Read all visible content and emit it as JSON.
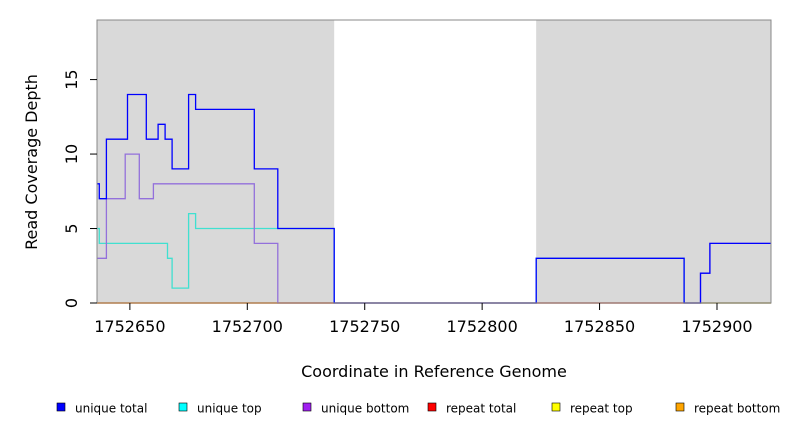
{
  "chart_data": {
    "type": "line",
    "xlabel": "Coordinate in Reference Genome",
    "ylabel": "Read Coverage Depth",
    "xlim": [
      1752636,
      1752923
    ],
    "ylim": [
      0,
      19
    ],
    "x_ticks": [
      1752650,
      1752700,
      1752750,
      1752800,
      1752850,
      1752900
    ],
    "x_tick_labels": [
      "1752650",
      "1752700",
      "1752750",
      "1752800",
      "1752850",
      "1752900"
    ],
    "y_ticks": [
      0,
      5,
      10,
      15
    ],
    "y_tick_labels": [
      "0",
      "5",
      "10",
      "15"
    ],
    "shaded_regions": [
      {
        "x0": 1752636,
        "x1": 1752737,
        "color": "#d9d9d9"
      },
      {
        "x0": 1752823,
        "x1": 1752923,
        "color": "#d9d9d9"
      }
    ],
    "legend_position": "bottom",
    "series": [
      {
        "name": "unique total",
        "color": "#0000ff",
        "legend_color": "#0000ff",
        "x": [
          1752636,
          1752637,
          1752640,
          1752648,
          1752649,
          1752657,
          1752658,
          1752662,
          1752665,
          1752668,
          1752675,
          1752676,
          1752678,
          1752703,
          1752709,
          1752713,
          1752736,
          1752737,
          1752823,
          1752886,
          1752893,
          1752897,
          1752923
        ],
        "y": [
          8,
          7,
          11,
          11,
          14,
          11,
          11,
          12,
          11,
          9,
          14,
          14,
          13,
          9,
          9,
          5,
          5,
          0,
          3,
          0,
          2,
          4,
          4
        ]
      },
      {
        "name": "unique top",
        "color": "#40e0d0",
        "legend_color": "#00ffff",
        "x": [
          1752636,
          1752637,
          1752666,
          1752668,
          1752675,
          1752676,
          1752678,
          1752713,
          1752736,
          1752737,
          1752823,
          1752886,
          1752923
        ],
        "y": [
          5,
          4,
          3,
          1,
          6,
          6,
          5,
          5,
          5,
          0,
          3,
          0,
          0
        ]
      },
      {
        "name": "unique bottom",
        "color": "#9370db",
        "legend_color": "#a020f0",
        "x": [
          1752636,
          1752640,
          1752648,
          1752654,
          1752658,
          1752660,
          1752703,
          1752712,
          1752713,
          1752893,
          1752897,
          1752923
        ],
        "y": [
          3,
          7,
          10,
          7,
          7,
          8,
          4,
          4,
          0,
          2,
          4,
          4
        ]
      },
      {
        "name": "repeat total",
        "color": "#ff0000",
        "legend_color": "#ff0000",
        "x": [
          1752636,
          1752923
        ],
        "y": [
          0,
          0
        ]
      },
      {
        "name": "repeat top",
        "color": "#ffff00",
        "legend_color": "#ffff00",
        "x": [
          1752636,
          1752923
        ],
        "y": [
          0,
          0
        ]
      },
      {
        "name": "repeat bottom",
        "color": "#ffa500",
        "legend_color": "#ffa500",
        "x": [
          1752636,
          1752737
        ],
        "y": [
          0,
          0
        ]
      }
    ]
  }
}
